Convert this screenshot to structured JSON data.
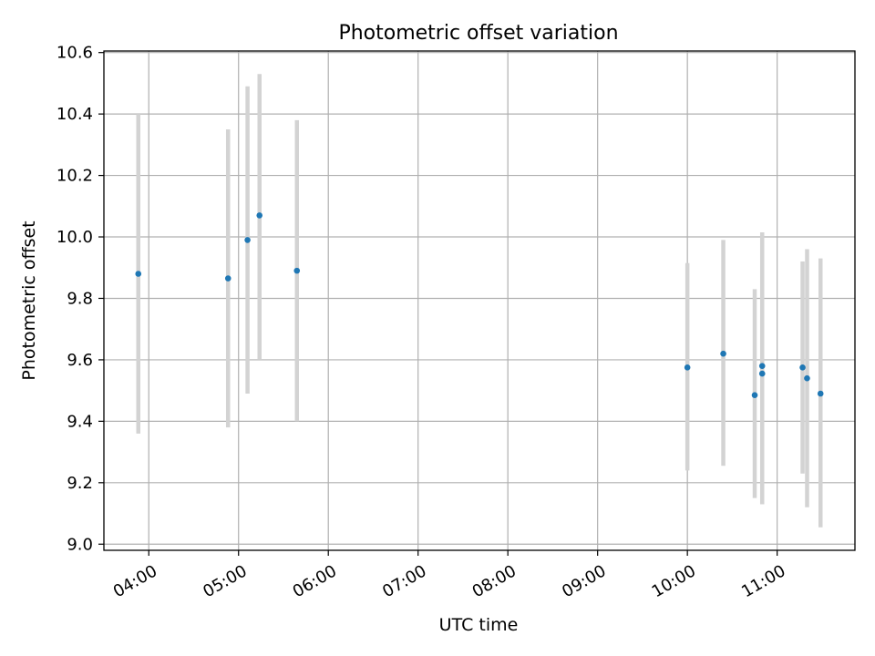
{
  "chart_data": {
    "type": "scatter",
    "title": "Photometric offset variation",
    "xlabel": "UTC time",
    "ylabel": "Photometric offset",
    "x_axis": {
      "kind": "time",
      "range": [
        "03:30",
        "11:52"
      ],
      "ticks": [
        "04:00",
        "05:00",
        "06:00",
        "07:00",
        "08:00",
        "09:00",
        "10:00",
        "11:00"
      ]
    },
    "y_axis": {
      "range": [
        8.98,
        10.605
      ],
      "ticks": [
        9.0,
        9.2,
        9.4,
        9.6,
        9.8,
        10.0,
        10.2,
        10.4,
        10.6
      ],
      "tick_labels": [
        "9.0",
        "9.2",
        "9.4",
        "9.6",
        "9.8",
        "10.0",
        "10.2",
        "10.4",
        "10.6"
      ]
    },
    "grid": true,
    "series": [
      {
        "points": [
          {
            "x": "03:53",
            "y": 9.88,
            "ylow": 9.36,
            "yhigh": 10.4
          },
          {
            "x": "04:53",
            "y": 9.865,
            "ylow": 9.38,
            "yhigh": 10.35
          },
          {
            "x": "05:06",
            "y": 9.99,
            "ylow": 9.49,
            "yhigh": 10.49
          },
          {
            "x": "05:14",
            "y": 10.07,
            "ylow": 9.6,
            "yhigh": 10.53
          },
          {
            "x": "05:39",
            "y": 9.89,
            "ylow": 9.4,
            "yhigh": 10.38
          },
          {
            "x": "10:00",
            "y": 9.575,
            "ylow": 9.24,
            "yhigh": 9.915
          },
          {
            "x": "10:24",
            "y": 9.62,
            "ylow": 9.255,
            "yhigh": 9.99
          },
          {
            "x": "10:45",
            "y": 9.485,
            "ylow": 9.15,
            "yhigh": 9.83
          },
          {
            "x": "10:50",
            "y": 9.58,
            "ylow": 9.13,
            "yhigh": 10.015
          },
          {
            "x": "10:50",
            "y": 9.555,
            "ylow": 9.13,
            "yhigh": 10.015
          },
          {
            "x": "11:17",
            "y": 9.575,
            "ylow": 9.23,
            "yhigh": 9.92
          },
          {
            "x": "11:20",
            "y": 9.54,
            "ylow": 9.12,
            "yhigh": 9.96
          },
          {
            "x": "11:29",
            "y": 9.49,
            "ylow": 9.055,
            "yhigh": 9.93
          }
        ]
      }
    ],
    "colors": {
      "point": "#1f77b4",
      "errorbar": "#d3d3d3",
      "grid": "#b0b0b0",
      "axis": "#000000"
    }
  }
}
